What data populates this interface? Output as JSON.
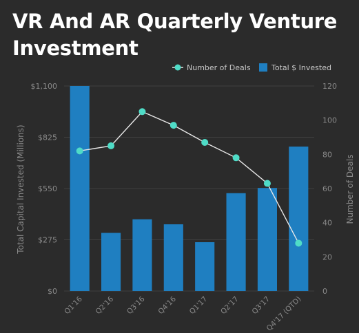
{
  "chart_data": {
    "type": "bar+line",
    "title": "VR And AR Quarterly Venture Investment",
    "categories": [
      "Q1'16",
      "Q2'16",
      "Q3'16",
      "Q4'16",
      "Q1'17",
      "Q2'17",
      "Q3'17",
      "Q4'17 (QTD)"
    ],
    "series": [
      {
        "name": "Total $ Invested",
        "type": "bar",
        "axis": "left",
        "color": "#1f7fc1",
        "values": [
          1100,
          312,
          385,
          358,
          262,
          525,
          553,
          775
        ]
      },
      {
        "name": "Number of Deals",
        "type": "line",
        "axis": "right",
        "color": "#4fdcc7",
        "line_color": "#e8e8e8",
        "values": [
          82,
          85,
          105,
          97,
          87,
          78,
          63,
          28
        ]
      }
    ],
    "ylabel": "Total Capital Invested (Millions)",
    "y2label": "Number of Deals",
    "ylim": [
      0,
      1100
    ],
    "y_ticks": [
      "$0",
      "$275",
      "$550",
      "$825",
      "$1,100"
    ],
    "y2lim": [
      0,
      120
    ],
    "y2_ticks": [
      "0",
      "20",
      "40",
      "60",
      "80",
      "100",
      "120"
    ],
    "grid": true,
    "legend_position": "top-right"
  }
}
